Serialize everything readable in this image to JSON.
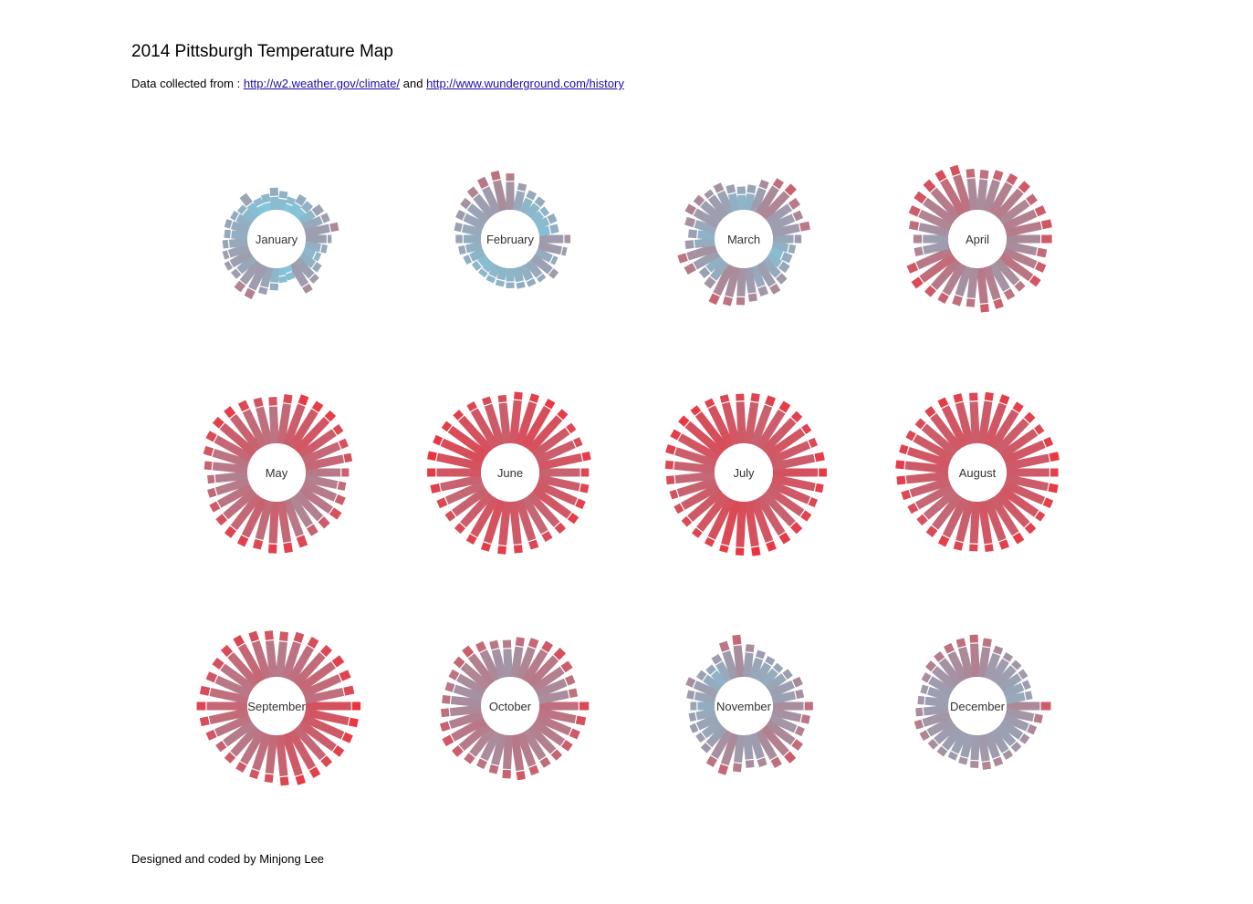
{
  "header": {
    "title": "2014 Pittsburgh Temperature Map",
    "source_prefix": "Data collected from :",
    "link1": "http://w2.weather.gov/climate/",
    "and_text": "and",
    "link2": "http://www.wunderground.com/history"
  },
  "footer": {
    "credit": "Designed and coded by Minjong Lee"
  },
  "chart_data": {
    "type": "radial-bar",
    "year": 2014,
    "color_cold": "#7fcde3",
    "color_mid": "#a09aab",
    "color_hot": "#ee2f3a",
    "temp_range": [
      0,
      100
    ],
    "months": [
      {
        "name": "January",
        "lows": [
          28,
          15,
          8,
          14,
          26,
          30,
          -5,
          -1,
          10,
          22,
          30,
          29,
          21,
          28,
          25,
          20,
          15,
          18,
          14,
          8,
          2,
          -2,
          -4,
          5,
          4,
          -3,
          0,
          -3,
          8,
          20,
          28
        ],
        "highs": [
          35,
          28,
          20,
          30,
          40,
          48,
          12,
          14,
          28,
          38,
          54,
          52,
          38,
          40,
          36,
          33,
          30,
          32,
          27,
          22,
          35,
          15,
          18,
          28,
          22,
          14,
          26,
          23,
          35,
          38,
          50
        ]
      },
      {
        "name": "February",
        "lows": [
          30,
          32,
          18,
          26,
          20,
          15,
          12,
          10,
          9,
          8,
          6,
          2,
          12,
          14,
          16,
          20,
          22,
          24,
          28,
          30,
          38,
          35,
          20,
          10,
          8,
          5,
          6,
          2
        ],
        "highs": [
          45,
          40,
          28,
          42,
          30,
          28,
          26,
          24,
          22,
          20,
          18,
          18,
          26,
          30,
          34,
          38,
          42,
          46,
          52,
          58,
          62,
          55,
          38,
          30,
          28,
          20,
          26,
          24
        ]
      },
      {
        "name": "March",
        "lows": [
          22,
          14,
          2,
          8,
          20,
          28,
          20,
          30,
          35,
          38,
          40,
          18,
          14,
          28,
          36,
          18,
          12,
          20,
          30,
          28,
          30,
          25,
          14,
          10,
          12,
          28,
          40,
          42,
          30,
          28,
          30
        ],
        "highs": [
          40,
          30,
          28,
          32,
          42,
          50,
          44,
          50,
          56,
          60,
          66,
          44,
          36,
          56,
          60,
          42,
          36,
          46,
          54,
          50,
          44,
          46,
          36,
          30,
          34,
          48,
          62,
          68,
          56,
          50,
          58
        ]
      },
      {
        "name": "April",
        "lows": [
          40,
          38,
          45,
          50,
          38,
          35,
          44,
          48,
          38,
          36,
          44,
          48,
          54,
          48,
          30,
          28,
          36,
          42,
          44,
          46,
          52,
          50,
          40,
          38,
          40,
          44,
          46,
          42,
          44,
          46
        ],
        "highs": [
          72,
          64,
          70,
          74,
          58,
          60,
          68,
          70,
          60,
          62,
          68,
          72,
          80,
          74,
          52,
          52,
          62,
          70,
          74,
          76,
          78,
          76,
          64,
          62,
          66,
          70,
          72,
          66,
          70,
          74
        ]
      },
      {
        "name": "May",
        "lows": [
          48,
          44,
          46,
          48,
          44,
          42,
          48,
          56,
          58,
          54,
          58,
          56,
          52,
          50,
          46,
          44,
          48,
          50,
          56,
          60,
          58,
          54,
          52,
          50,
          56,
          60,
          62,
          64,
          60,
          56,
          56
        ],
        "highs": [
          68,
          64,
          70,
          76,
          70,
          68,
          80,
          84,
          84,
          80,
          84,
          82,
          76,
          72,
          66,
          62,
          68,
          74,
          80,
          84,
          84,
          80,
          76,
          74,
          80,
          86,
          86,
          86,
          80,
          76,
          76
        ]
      },
      {
        "name": "June",
        "lows": [
          58,
          60,
          62,
          64,
          58,
          56,
          60,
          62,
          64,
          66,
          64,
          60,
          58,
          56,
          58,
          64,
          66,
          68,
          68,
          66,
          64,
          62,
          60,
          64,
          66,
          68,
          66,
          62,
          60,
          64
        ],
        "highs": [
          80,
          82,
          84,
          86,
          80,
          78,
          82,
          84,
          86,
          86,
          84,
          80,
          78,
          80,
          84,
          88,
          90,
          88,
          86,
          84,
          82,
          80,
          78,
          84,
          86,
          88,
          86,
          80,
          78,
          86
        ]
      },
      {
        "name": "July",
        "lows": [
          66,
          64,
          62,
          60,
          58,
          60,
          64,
          66,
          68,
          70,
          66,
          64,
          62,
          60,
          58,
          56,
          58,
          60,
          64,
          66,
          68,
          66,
          64,
          62,
          60,
          58,
          60,
          62,
          64,
          62,
          60
        ],
        "highs": [
          88,
          84,
          80,
          82,
          84,
          86,
          88,
          90,
          88,
          86,
          84,
          82,
          80,
          78,
          76,
          78,
          80,
          84,
          86,
          88,
          86,
          84,
          82,
          80,
          82,
          84,
          86,
          84,
          82,
          80,
          86
        ]
      },
      {
        "name": "August",
        "lows": [
          62,
          60,
          62,
          64,
          62,
          60,
          62,
          64,
          62,
          60,
          58,
          56,
          54,
          56,
          58,
          60,
          62,
          64,
          62,
          60,
          62,
          64,
          62,
          60,
          62,
          64,
          62,
          60,
          62,
          64,
          62
        ],
        "highs": [
          84,
          86,
          84,
          82,
          84,
          86,
          84,
          82,
          80,
          82,
          84,
          80,
          76,
          78,
          80,
          84,
          86,
          84,
          82,
          80,
          84,
          86,
          84,
          82,
          84,
          86,
          84,
          82,
          80,
          84,
          88
        ]
      },
      {
        "name": "September",
        "lows": [
          66,
          64,
          62,
          60,
          56,
          60,
          62,
          58,
          54,
          52,
          50,
          48,
          46,
          50,
          54,
          56,
          52,
          48,
          50,
          54,
          56,
          52,
          48,
          46,
          50,
          52,
          54,
          56,
          54,
          52
        ],
        "highs": [
          90,
          88,
          86,
          84,
          80,
          84,
          86,
          82,
          76,
          74,
          72,
          70,
          68,
          74,
          78,
          82,
          78,
          74,
          76,
          80,
          82,
          78,
          74,
          72,
          76,
          78,
          80,
          84,
          82,
          80
        ]
      },
      {
        "name": "October",
        "lows": [
          52,
          50,
          48,
          46,
          44,
          42,
          46,
          48,
          44,
          40,
          38,
          42,
          46,
          48,
          44,
          40,
          38,
          36,
          38,
          42,
          44,
          40,
          36,
          34,
          38,
          42,
          46,
          48,
          44,
          40,
          38
        ],
        "highs": [
          80,
          76,
          72,
          70,
          66,
          64,
          68,
          72,
          68,
          62,
          60,
          64,
          70,
          74,
          68,
          62,
          60,
          58,
          60,
          66,
          70,
          64,
          58,
          56,
          62,
          66,
          72,
          76,
          70,
          62,
          60
        ]
      },
      {
        "name": "November",
        "lows": [
          38,
          36,
          34,
          40,
          44,
          38,
          30,
          28,
          32,
          40,
          36,
          26,
          22,
          24,
          20,
          16,
          22,
          28,
          18,
          12,
          20,
          32,
          38,
          28,
          22,
          20,
          18,
          22,
          28,
          26
        ],
        "highs": [
          62,
          58,
          54,
          64,
          70,
          62,
          50,
          48,
          56,
          66,
          60,
          44,
          38,
          40,
          36,
          32,
          40,
          48,
          36,
          30,
          40,
          58,
          66,
          48,
          40,
          36,
          34,
          40,
          50,
          46
        ]
      },
      {
        "name": "December",
        "lows": [
          40,
          34,
          30,
          28,
          26,
          28,
          30,
          32,
          30,
          28,
          26,
          28,
          30,
          32,
          34,
          30,
          28,
          26,
          30,
          34,
          36,
          38,
          40,
          44,
          38,
          32,
          30,
          28,
          26,
          22,
          20
        ],
        "highs": [
          70,
          56,
          50,
          46,
          44,
          46,
          50,
          52,
          48,
          44,
          42,
          46,
          48,
          52,
          54,
          48,
          44,
          42,
          48,
          54,
          56,
          60,
          62,
          66,
          60,
          50,
          46,
          44,
          42,
          38,
          36
        ]
      }
    ]
  }
}
